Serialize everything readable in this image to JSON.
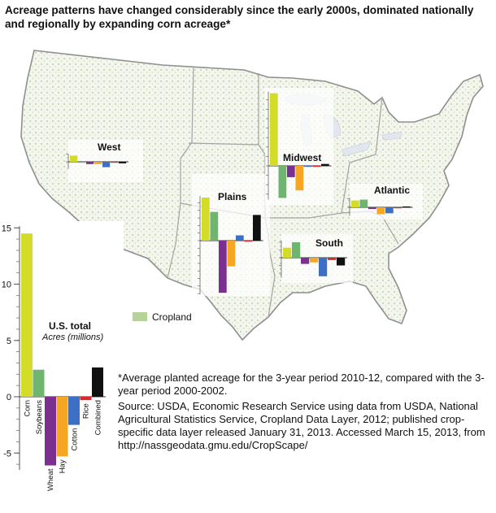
{
  "title": "Acreage patterns have changed considerably since the early 2000s, dominated nationally and regionally by expanding corn acreage*",
  "legend": {
    "label": "Cropland",
    "color": "#b7d39a"
  },
  "footnote": "*Average planted acreage for the 3-year period 2010-12, compared with the 3-year period 2000-2002.",
  "source": "Source: USDA, Economic Research Service using data from USDA, National Agricultural Statistics Service, Cropland Data Layer, 2012; published crop-specific data layer released January 31, 2013. Accessed March 15, 2013, from http://nassgeodata.gmu.edu/CropScape/",
  "colors": {
    "Corn": "#d4dc2a",
    "Soybeans": "#6fb46f",
    "Wheat": "#7b2f8e",
    "Hay": "#f5a623",
    "Cotton": "#3d6fc4",
    "Rice": "#e0262b",
    "Combined": "#111111"
  },
  "chart_data": [
    {
      "type": "bar",
      "region": "U.S. total",
      "title": "U.S. total",
      "ylabel": "Acres (millions)",
      "ylim": [
        -6.5,
        15
      ],
      "yticks": [
        -5,
        0,
        5,
        10,
        15
      ],
      "categories": [
        "Corn",
        "Soybeans",
        "Wheat",
        "Hay",
        "Cotton",
        "Rice",
        "Combined"
      ],
      "values": [
        14.5,
        2.4,
        -6.1,
        -5.3,
        -2.5,
        -0.3,
        2.6
      ]
    },
    {
      "type": "bar",
      "region": "West",
      "title": "West",
      "categories": [
        "Corn",
        "Soybeans",
        "Wheat",
        "Hay",
        "Cotton",
        "Rice",
        "Combined"
      ],
      "values": [
        0.8,
        0.0,
        -0.3,
        -0.3,
        -0.7,
        -0.1,
        -0.2
      ]
    },
    {
      "type": "bar",
      "region": "Plains",
      "title": "Plains",
      "categories": [
        "Corn",
        "Soybeans",
        "Wheat",
        "Hay",
        "Cotton",
        "Rice",
        "Combined"
      ],
      "values": [
        5.7,
        3.8,
        -6.9,
        -3.4,
        0.7,
        -0.1,
        3.4
      ]
    },
    {
      "type": "bar",
      "region": "Midwest",
      "title": "Midwest",
      "categories": [
        "Corn",
        "Soybeans",
        "Wheat",
        "Hay",
        "Cotton",
        "Rice",
        "Combined"
      ],
      "values": [
        7.7,
        -3.4,
        -1.2,
        -2.6,
        0.0,
        0.0,
        0.2
      ]
    },
    {
      "type": "bar",
      "region": "Atlantic",
      "title": "Atlantic",
      "categories": [
        "Corn",
        "Soybeans",
        "Wheat",
        "Hay",
        "Cotton",
        "Rice",
        "Combined"
      ],
      "values": [
        0.8,
        0.9,
        -0.2,
        -0.8,
        -0.7,
        0.0,
        0.1
      ]
    },
    {
      "type": "bar",
      "region": "South",
      "title": "South",
      "categories": [
        "Corn",
        "Soybeans",
        "Wheat",
        "Hay",
        "Cotton",
        "Rice",
        "Combined"
      ],
      "values": [
        1.3,
        2.0,
        -0.8,
        -0.6,
        -2.4,
        -0.3,
        -1.0
      ]
    }
  ]
}
